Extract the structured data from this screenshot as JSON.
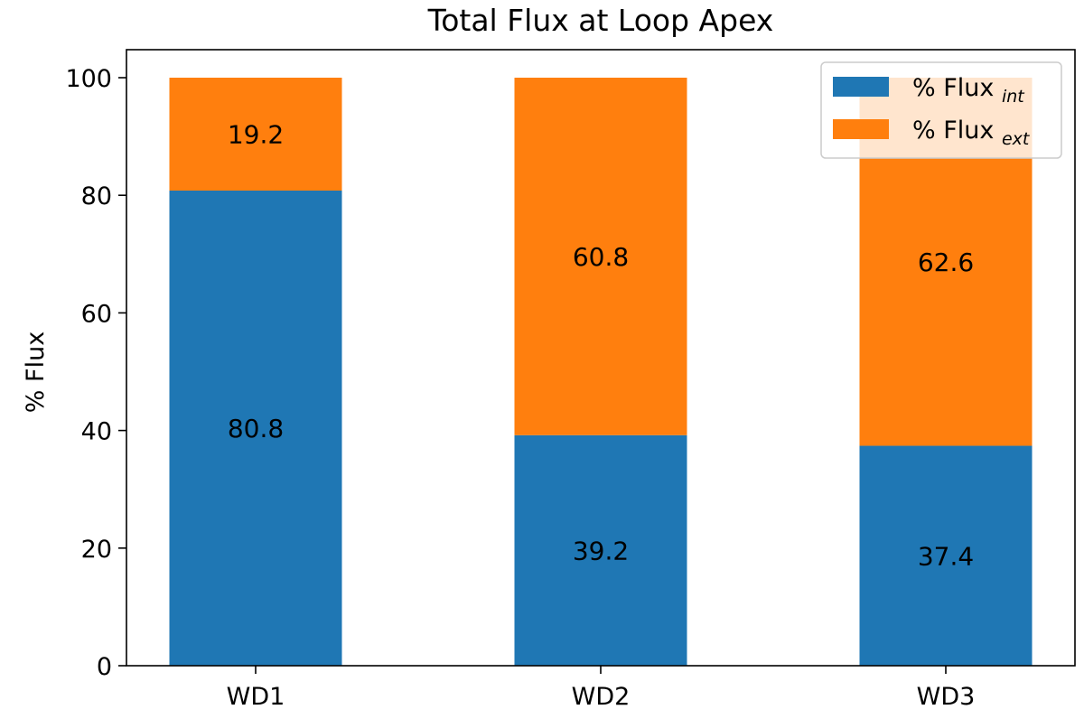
{
  "chart_data": {
    "type": "bar",
    "stacked": true,
    "title": "Total Flux at Loop Apex",
    "xlabel": "",
    "ylabel": "% Flux",
    "categories": [
      "WD1",
      "WD2",
      "WD3"
    ],
    "series": [
      {
        "name": "% Flux",
        "name_subscript": "int",
        "color": "#1f77b4",
        "values": [
          80.8,
          39.2,
          37.4
        ],
        "labels": [
          "80.8",
          "39.2",
          "37.4"
        ]
      },
      {
        "name": "% Flux",
        "name_subscript": "ext",
        "color": "#ff7f0e",
        "values": [
          19.2,
          60.8,
          62.6
        ],
        "labels": [
          "19.2",
          "60.8",
          "62.6"
        ]
      }
    ],
    "ylim": [
      0,
      100
    ],
    "yticks": [
      0,
      20,
      40,
      60,
      80,
      100
    ],
    "ytick_labels": [
      "0",
      "20",
      "40",
      "60",
      "80",
      "100"
    ],
    "grid": false,
    "legend": "top-right"
  }
}
